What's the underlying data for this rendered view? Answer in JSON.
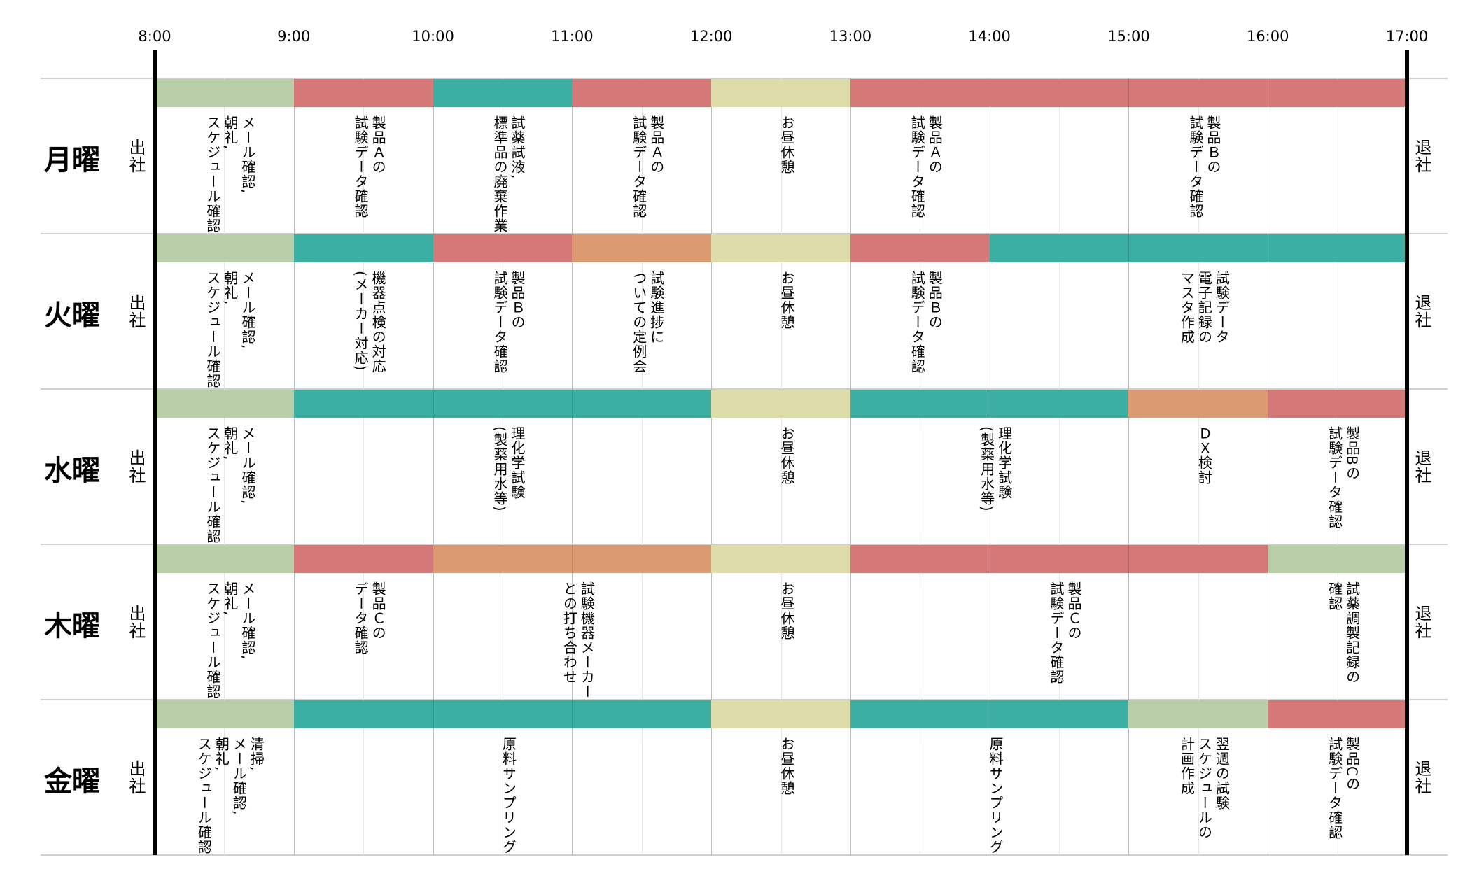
{
  "colors": {
    "green": "#b7cea8",
    "red": "#d47878",
    "teal": "#3aafa2",
    "orange": "#dc9a70",
    "yellow": "#dedca8"
  },
  "time_labels": [
    "8:00",
    "9:00",
    "10:00",
    "11:00",
    "12:00",
    "13:00",
    "14:00",
    "15:00",
    "16:00",
    "17:00"
  ],
  "arrival_label": "出社",
  "leave_label": "退社",
  "days": [
    {
      "name": "月曜",
      "blocks": [
        {
          "start": 8,
          "end": 9,
          "color": "green",
          "label": "メール確認,\n朝礼,\nスケジュール確認"
        },
        {
          "start": 9,
          "end": 10,
          "color": "red",
          "label": "製品Ａの\n試験データ確認"
        },
        {
          "start": 10,
          "end": 11,
          "color": "teal",
          "label": "試薬試液,\n標準品の廃棄作業"
        },
        {
          "start": 11,
          "end": 12,
          "color": "red",
          "label": "製品Ａの\n試験データ確認"
        },
        {
          "start": 12,
          "end": 13,
          "color": "yellow",
          "label": "お昼休憩"
        },
        {
          "start": 13,
          "end": 14,
          "color": "red",
          "label": "製品Ａの\n試験データ確認"
        },
        {
          "start": 14,
          "end": 17,
          "color": "red",
          "label": "製品Ｂの\n試験データ確認"
        }
      ]
    },
    {
      "name": "火曜",
      "blocks": [
        {
          "start": 8,
          "end": 9,
          "color": "green",
          "label": "メール確認,\n朝礼,\nスケジュール確認"
        },
        {
          "start": 9,
          "end": 10,
          "color": "teal",
          "label": "機器点検の対応\n(メーカー対応)"
        },
        {
          "start": 10,
          "end": 11,
          "color": "red",
          "label": "製品Ｂの\n試験データ確認"
        },
        {
          "start": 11,
          "end": 12,
          "color": "orange",
          "label": "試験進捗に\nついての定例会"
        },
        {
          "start": 12,
          "end": 13,
          "color": "yellow",
          "label": "お昼休憩"
        },
        {
          "start": 13,
          "end": 14,
          "color": "red",
          "label": "製品Ｂの\n試験データ確認"
        },
        {
          "start": 14,
          "end": 17,
          "color": "teal",
          "label": "試験データ\n電子記録の\nマスタ作成"
        }
      ]
    },
    {
      "name": "水曜",
      "blocks": [
        {
          "start": 8,
          "end": 9,
          "color": "green",
          "label": "メール確認,\n朝礼,\nスケジュール確認"
        },
        {
          "start": 9,
          "end": 12,
          "color": "teal",
          "label": "理化学試験\n(製薬用水等)"
        },
        {
          "start": 12,
          "end": 13,
          "color": "yellow",
          "label": "お昼休憩"
        },
        {
          "start": 13,
          "end": 15,
          "color": "teal",
          "label": "理化学試験\n(製薬用水等)"
        },
        {
          "start": 15,
          "end": 16,
          "color": "orange",
          "label": "ＤＸ検討"
        },
        {
          "start": 16,
          "end": 17,
          "color": "red",
          "label": "製品Bの\n試験データ確認"
        }
      ]
    },
    {
      "name": "木曜",
      "blocks": [
        {
          "start": 8,
          "end": 9,
          "color": "green",
          "label": "メール確認,\n朝礼,\nスケジュール確認"
        },
        {
          "start": 9,
          "end": 10,
          "color": "red",
          "label": "製品Ｃの\nデータ確認"
        },
        {
          "start": 10,
          "end": 12,
          "color": "orange",
          "label": "試験機器メーカー\nとの打ち合わせ"
        },
        {
          "start": 12,
          "end": 13,
          "color": "yellow",
          "label": "お昼休憩"
        },
        {
          "start": 13,
          "end": 16,
          "color": "red",
          "label": "製品Ｃの\n試験データ確認"
        },
        {
          "start": 16,
          "end": 17,
          "color": "green",
          "label": "試薬調製記録の\n確認"
        }
      ]
    },
    {
      "name": "金曜",
      "blocks": [
        {
          "start": 8,
          "end": 9,
          "color": "green",
          "label": "清掃,\nメール確認,\n朝礼,\nスケジュール確認"
        },
        {
          "start": 9,
          "end": 12,
          "color": "teal",
          "label": "原料サンプリング"
        },
        {
          "start": 12,
          "end": 13,
          "color": "yellow",
          "label": "お昼休憩"
        },
        {
          "start": 13,
          "end": 15,
          "color": "teal",
          "label": "原料サンプリング"
        },
        {
          "start": 15,
          "end": 16,
          "color": "green",
          "label": "翌週の試験\nスケジュールの\n計画作成"
        },
        {
          "start": 16,
          "end": 17,
          "color": "red",
          "label": "製品Cの\n試験データ確認"
        }
      ]
    }
  ]
}
